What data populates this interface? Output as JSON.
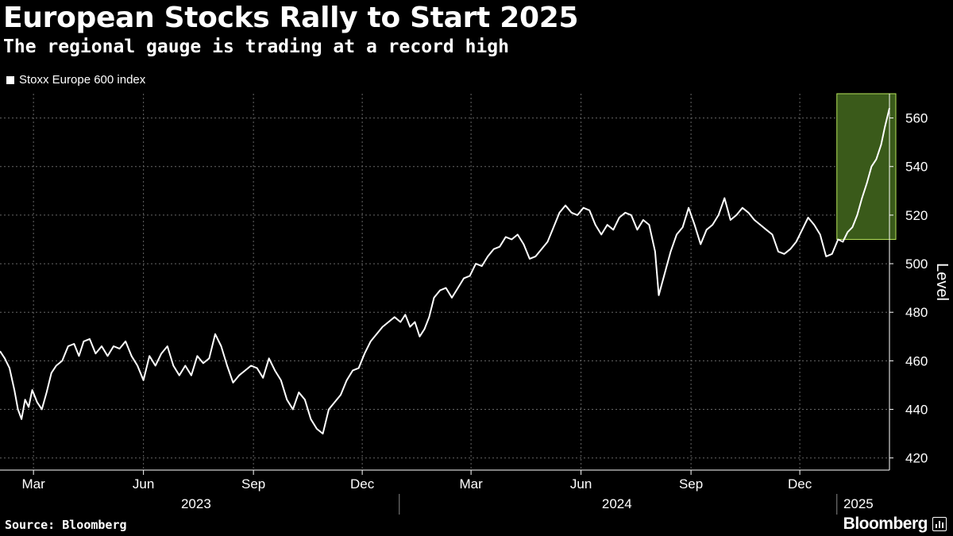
{
  "header": {
    "title": "European Stocks Rally to Start 2025",
    "subtitle": "The regional gauge is trading at a record high"
  },
  "footer": {
    "source": "Source: Bloomberg",
    "brand": "Bloomberg"
  },
  "colors": {
    "background": "#000000",
    "line": "#ffffff",
    "highlight_fill": "#3a5a1a",
    "highlight_border": "#b6e35a",
    "grid": "#666666"
  },
  "chart_data": {
    "type": "line",
    "ylabel": "Level",
    "ylim": [
      415,
      570
    ],
    "yticks": [
      420,
      440,
      460,
      480,
      500,
      520,
      540,
      560
    ],
    "xlim": [
      "2023-02-01",
      "2025-02-14"
    ],
    "month_ticks": [
      {
        "label": "Mar",
        "date": "2023-03-01"
      },
      {
        "label": "Jun",
        "date": "2023-06-01"
      },
      {
        "label": "Sep",
        "date": "2023-09-01"
      },
      {
        "label": "Dec",
        "date": "2023-12-01"
      },
      {
        "label": "Mar",
        "date": "2024-03-01"
      },
      {
        "label": "Jun",
        "date": "2024-06-01"
      },
      {
        "label": "Sep",
        "date": "2024-09-01"
      },
      {
        "label": "Dec",
        "date": "2024-12-01"
      }
    ],
    "year_labels": [
      {
        "label": "2023",
        "date": "2023-07-15"
      },
      {
        "label": "2024",
        "date": "2024-07-01"
      },
      {
        "label": "2025",
        "date": "2025-01-19"
      }
    ],
    "year_dividers": [
      "2024-01-01",
      "2025-01-01"
    ],
    "grid": true,
    "legend": {
      "position": "top-left"
    },
    "highlight": {
      "x_start": "2025-01-01",
      "x_end": "2025-02-14",
      "y_start": 510,
      "y_end": 570
    },
    "series": [
      {
        "name": "Stoxx Europe 600 index",
        "points": [
          [
            "2023-02-01",
            464
          ],
          [
            "2023-02-05",
            461
          ],
          [
            "2023-02-09",
            457
          ],
          [
            "2023-02-13",
            448
          ],
          [
            "2023-02-16",
            440
          ],
          [
            "2023-02-19",
            436
          ],
          [
            "2023-02-22",
            444
          ],
          [
            "2023-02-25",
            441
          ],
          [
            "2023-02-28",
            448
          ],
          [
            "2023-03-04",
            443
          ],
          [
            "2023-03-08",
            440
          ],
          [
            "2023-03-12",
            447
          ],
          [
            "2023-03-16",
            455
          ],
          [
            "2023-03-20",
            458
          ],
          [
            "2023-03-25",
            460
          ],
          [
            "2023-03-30",
            466
          ],
          [
            "2023-04-04",
            467
          ],
          [
            "2023-04-08",
            462
          ],
          [
            "2023-04-12",
            468
          ],
          [
            "2023-04-17",
            469
          ],
          [
            "2023-04-22",
            463
          ],
          [
            "2023-04-27",
            466
          ],
          [
            "2023-05-02",
            462
          ],
          [
            "2023-05-07",
            466
          ],
          [
            "2023-05-12",
            465
          ],
          [
            "2023-05-17",
            468
          ],
          [
            "2023-05-22",
            462
          ],
          [
            "2023-05-27",
            458
          ],
          [
            "2023-06-01",
            452
          ],
          [
            "2023-06-06",
            462
          ],
          [
            "2023-06-11",
            458
          ],
          [
            "2023-06-16",
            463
          ],
          [
            "2023-06-21",
            466
          ],
          [
            "2023-06-26",
            458
          ],
          [
            "2023-07-01",
            454
          ],
          [
            "2023-07-06",
            458
          ],
          [
            "2023-07-11",
            454
          ],
          [
            "2023-07-16",
            462
          ],
          [
            "2023-07-21",
            459
          ],
          [
            "2023-07-26",
            461
          ],
          [
            "2023-07-31",
            471
          ],
          [
            "2023-08-05",
            466
          ],
          [
            "2023-08-10",
            458
          ],
          [
            "2023-08-15",
            451
          ],
          [
            "2023-08-20",
            454
          ],
          [
            "2023-08-25",
            456
          ],
          [
            "2023-08-30",
            458
          ],
          [
            "2023-09-04",
            457
          ],
          [
            "2023-09-09",
            453
          ],
          [
            "2023-09-14",
            461
          ],
          [
            "2023-09-19",
            456
          ],
          [
            "2023-09-24",
            452
          ],
          [
            "2023-09-29",
            444
          ],
          [
            "2023-10-04",
            440
          ],
          [
            "2023-10-09",
            447
          ],
          [
            "2023-10-14",
            444
          ],
          [
            "2023-10-19",
            436
          ],
          [
            "2023-10-24",
            432
          ],
          [
            "2023-10-29",
            430
          ],
          [
            "2023-11-03",
            440
          ],
          [
            "2023-11-08",
            443
          ],
          [
            "2023-11-13",
            446
          ],
          [
            "2023-11-18",
            452
          ],
          [
            "2023-11-23",
            456
          ],
          [
            "2023-11-28",
            457
          ],
          [
            "2023-12-03",
            463
          ],
          [
            "2023-12-08",
            468
          ],
          [
            "2023-12-13",
            471
          ],
          [
            "2023-12-18",
            474
          ],
          [
            "2023-12-23",
            476
          ],
          [
            "2023-12-28",
            478
          ],
          [
            "2024-01-02",
            476
          ],
          [
            "2024-01-06",
            479
          ],
          [
            "2024-01-10",
            474
          ],
          [
            "2024-01-14",
            476
          ],
          [
            "2024-01-18",
            470
          ],
          [
            "2024-01-22",
            473
          ],
          [
            "2024-01-26",
            478
          ],
          [
            "2024-01-30",
            486
          ],
          [
            "2024-02-04",
            489
          ],
          [
            "2024-02-09",
            490
          ],
          [
            "2024-02-14",
            486
          ],
          [
            "2024-02-19",
            490
          ],
          [
            "2024-02-24",
            494
          ],
          [
            "2024-02-29",
            495
          ],
          [
            "2024-03-05",
            500
          ],
          [
            "2024-03-10",
            499
          ],
          [
            "2024-03-15",
            503
          ],
          [
            "2024-03-20",
            506
          ],
          [
            "2024-03-25",
            507
          ],
          [
            "2024-03-30",
            511
          ],
          [
            "2024-04-04",
            510
          ],
          [
            "2024-04-09",
            512
          ],
          [
            "2024-04-14",
            508
          ],
          [
            "2024-04-19",
            502
          ],
          [
            "2024-04-24",
            503
          ],
          [
            "2024-04-29",
            506
          ],
          [
            "2024-05-04",
            509
          ],
          [
            "2024-05-09",
            515
          ],
          [
            "2024-05-14",
            521
          ],
          [
            "2024-05-19",
            524
          ],
          [
            "2024-05-24",
            521
          ],
          [
            "2024-05-29",
            520
          ],
          [
            "2024-06-03",
            523
          ],
          [
            "2024-06-08",
            522
          ],
          [
            "2024-06-13",
            516
          ],
          [
            "2024-06-18",
            512
          ],
          [
            "2024-06-23",
            516
          ],
          [
            "2024-06-28",
            514
          ],
          [
            "2024-07-03",
            519
          ],
          [
            "2024-07-08",
            521
          ],
          [
            "2024-07-13",
            520
          ],
          [
            "2024-07-18",
            514
          ],
          [
            "2024-07-23",
            518
          ],
          [
            "2024-07-28",
            516
          ],
          [
            "2024-08-02",
            505
          ],
          [
            "2024-08-05",
            487
          ],
          [
            "2024-08-10",
            496
          ],
          [
            "2024-08-15",
            505
          ],
          [
            "2024-08-20",
            512
          ],
          [
            "2024-08-25",
            515
          ],
          [
            "2024-08-30",
            523
          ],
          [
            "2024-09-04",
            516
          ],
          [
            "2024-09-09",
            508
          ],
          [
            "2024-09-14",
            514
          ],
          [
            "2024-09-19",
            516
          ],
          [
            "2024-09-24",
            520
          ],
          [
            "2024-09-29",
            527
          ],
          [
            "2024-10-04",
            518
          ],
          [
            "2024-10-09",
            520
          ],
          [
            "2024-10-14",
            523
          ],
          [
            "2024-10-19",
            521
          ],
          [
            "2024-10-24",
            518
          ],
          [
            "2024-10-29",
            516
          ],
          [
            "2024-11-03",
            514
          ],
          [
            "2024-11-08",
            512
          ],
          [
            "2024-11-13",
            505
          ],
          [
            "2024-11-18",
            504
          ],
          [
            "2024-11-23",
            506
          ],
          [
            "2024-11-28",
            509
          ],
          [
            "2024-12-03",
            514
          ],
          [
            "2024-12-08",
            519
          ],
          [
            "2024-12-13",
            516
          ],
          [
            "2024-12-18",
            512
          ],
          [
            "2024-12-23",
            503
          ],
          [
            "2024-12-28",
            504
          ],
          [
            "2025-01-02",
            510
          ],
          [
            "2025-01-06",
            509
          ],
          [
            "2025-01-10",
            513
          ],
          [
            "2025-01-14",
            515
          ],
          [
            "2025-01-18",
            520
          ],
          [
            "2025-01-22",
            527
          ],
          [
            "2025-01-26",
            533
          ],
          [
            "2025-01-30",
            540
          ],
          [
            "2025-02-03",
            543
          ],
          [
            "2025-02-07",
            549
          ],
          [
            "2025-02-10",
            556
          ],
          [
            "2025-02-14",
            564
          ]
        ]
      }
    ]
  }
}
